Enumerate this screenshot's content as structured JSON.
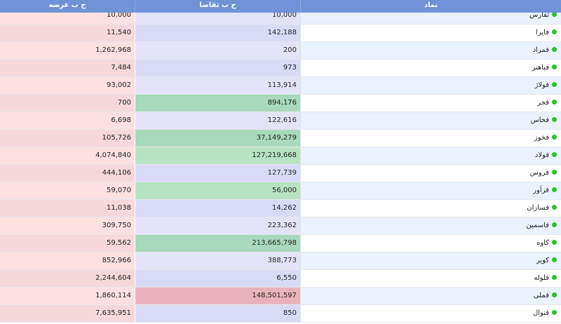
{
  "header": {
    "offer_label": "ح ب عرضه",
    "bid_label": "ح ب تقاضا",
    "symbol_label": "نماد"
  },
  "colors": {
    "header_bg": "#6f93d6",
    "offer_bg_a": "#fde0e0",
    "offer_bg_b": "#f6d8dc",
    "bid_default_a": "#e3e3f8",
    "bid_default_b": "#d9dbf6",
    "bid_green_a": "#b7e3c2",
    "bid_green_b": "#a8d9bd",
    "bid_red": "#eab3bb",
    "sym_a": "#eaf2fd",
    "sym_b": "#ffffff",
    "status_dot": "#2fbf2f"
  },
  "rows": [
    {
      "symbol": "ثفارس",
      "bid": "10,000",
      "offer": "10,000",
      "bid_state": "normal"
    },
    {
      "symbol": "فایرا",
      "bid": "142,188",
      "offer": "11,540",
      "bid_state": "normal"
    },
    {
      "symbol": "فمراد",
      "bid": "200",
      "offer": "1,262,968",
      "bid_state": "normal"
    },
    {
      "symbol": "فباهنر",
      "bid": "973",
      "offer": "7,484",
      "bid_state": "normal"
    },
    {
      "symbol": "فولاژ",
      "bid": "113,914",
      "offer": "93,002",
      "bid_state": "normal"
    },
    {
      "symbol": "فجر",
      "bid": "894,176",
      "offer": "700",
      "bid_state": "green"
    },
    {
      "symbol": "فخاس",
      "bid": "122,616",
      "offer": "6,698",
      "bid_state": "normal"
    },
    {
      "symbol": "فخوز",
      "bid": "37,149,279",
      "offer": "105,726",
      "bid_state": "green"
    },
    {
      "symbol": "فولاد",
      "bid": "127,219,668",
      "offer": "4,074,840",
      "bid_state": "green"
    },
    {
      "symbol": "فروس",
      "bid": "127,739",
      "offer": "444,106",
      "bid_state": "normal"
    },
    {
      "symbol": "فرآور",
      "bid": "56,000",
      "offer": "59,070",
      "bid_state": "green"
    },
    {
      "symbol": "فسازان",
      "bid": "14,262",
      "offer": "11,038",
      "bid_state": "normal"
    },
    {
      "symbol": "فاسمین",
      "bid": "223,362",
      "offer": "309,750",
      "bid_state": "normal"
    },
    {
      "symbol": "کاوه",
      "bid": "213,665,798",
      "offer": "59,562",
      "bid_state": "green"
    },
    {
      "symbol": "کویر",
      "bid": "388,773",
      "offer": "852,966",
      "bid_state": "normal"
    },
    {
      "symbol": "فلوله",
      "bid": "6,550",
      "offer": "2,244,604",
      "bid_state": "normal"
    },
    {
      "symbol": "فملی",
      "bid": "148,501,597",
      "offer": "1,860,114",
      "bid_state": "red"
    },
    {
      "symbol": "فنوال",
      "bid": "850",
      "offer": "7,635,951",
      "bid_state": "normal"
    }
  ]
}
